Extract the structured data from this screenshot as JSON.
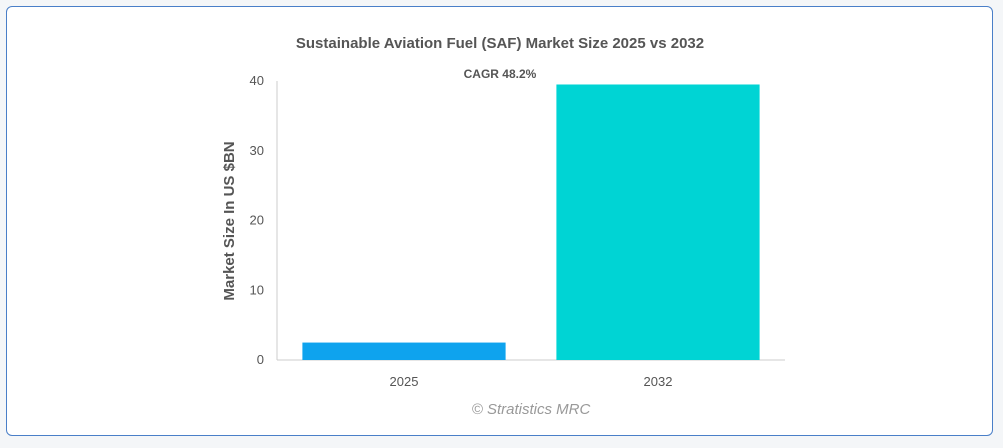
{
  "chart_data": {
    "type": "bar",
    "title": "Sustainable Aviation Fuel (SAF) Market Size 2025 vs 2032",
    "xlabel": "",
    "ylabel": "Market Size In US $BN",
    "categories": [
      "2025",
      "2032"
    ],
    "values": [
      2.5,
      39.5
    ],
    "colors": [
      "#0ea3ee",
      "#00d4d4"
    ],
    "ylim": [
      0,
      40
    ],
    "yticks": [
      0,
      10,
      20,
      30,
      40
    ],
    "grid": false,
    "legend": "none",
    "annotation": "CAGR 48.2%",
    "credit": "© Stratistics MRC"
  }
}
